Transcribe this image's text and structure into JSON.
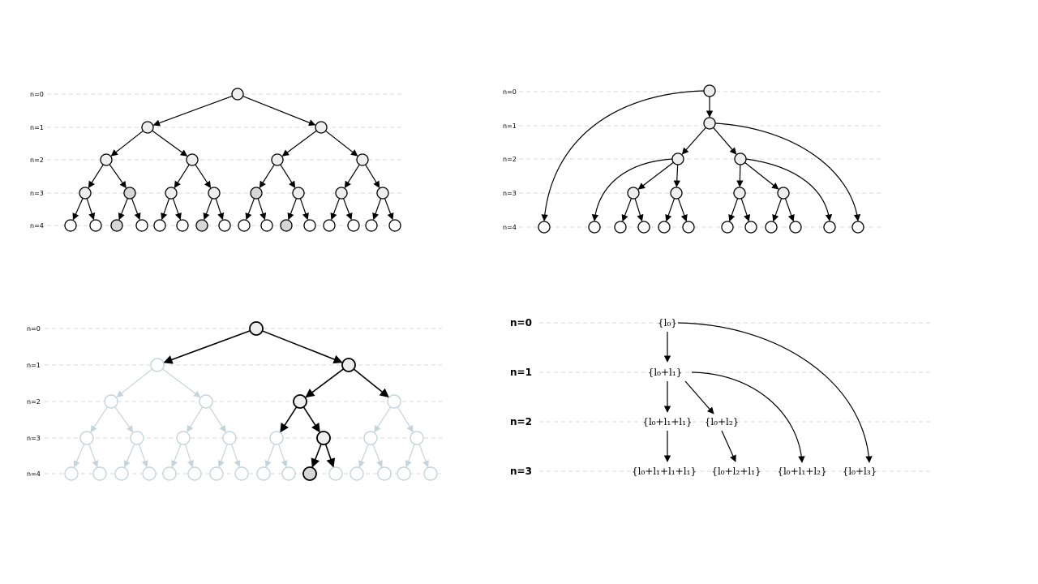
{
  "panels": {
    "full_tree": {
      "level_labels": [
        "n=0",
        "n=1",
        "n=2",
        "n=3",
        "n=4"
      ]
    },
    "reduced_tree": {
      "level_labels": [
        "n=0",
        "n=1",
        "n=2",
        "n=3",
        "n=4"
      ]
    },
    "highlighted_path": {
      "level_labels": [
        "n=0",
        "n=1",
        "n=2",
        "n=3",
        "n=4"
      ]
    },
    "composition_sets": {
      "level_labels": [
        "n=0",
        "n=1",
        "n=2",
        "n=3"
      ],
      "nodes": {
        "s0": "{l₀}",
        "s1": "{l₀+l₁}",
        "s2a": "{l₀+l₁+l₁}",
        "s2b": "{l₀+l₂}",
        "s3a": "{l₀+l₁+l₁+l₁}",
        "s3b": "{l₀+l₂+l₁}",
        "s3c": "{l₀+l₁+l₂}",
        "s3d": "{l₀+l₃}"
      }
    }
  },
  "colors": {
    "node_fill": "#eeeeee",
    "node_fill_shaded": "#d6d6d6",
    "node_fill_leaf": "#ffffff",
    "faded": "#c5d4dc",
    "guide": "#d8d8d8"
  }
}
